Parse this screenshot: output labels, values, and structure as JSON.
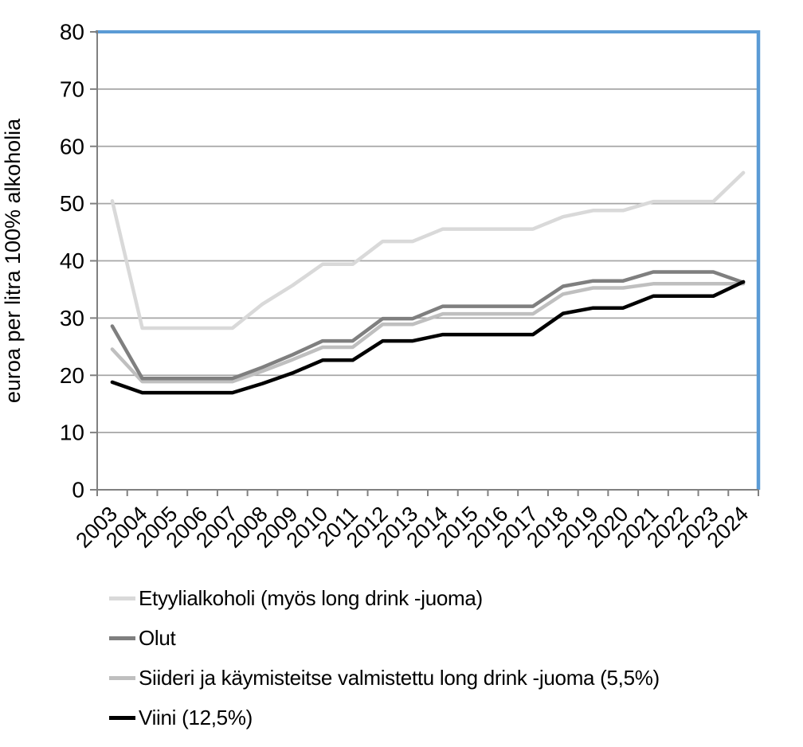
{
  "chart_data": {
    "type": "line",
    "title": "",
    "xlabel": "",
    "ylabel": "euroa per litra 100% alkoholia",
    "ylim": [
      0,
      80
    ],
    "ytick_step": 10,
    "grid": true,
    "legend_position": "bottom-left",
    "x": [
      "2003",
      "2004",
      "2005",
      "2006",
      "2007",
      "2008",
      "2009",
      "2010",
      "2011",
      "2012",
      "2013",
      "2014",
      "2015",
      "2016",
      "2017",
      "2018",
      "2019",
      "2020",
      "2021",
      "2022",
      "2023",
      "2024"
    ],
    "series": [
      {
        "name": "Etyylialkoholi (myös long drink -juoma)",
        "color": "#d9d9d9",
        "values": [
          50.46,
          28.25,
          28.25,
          28.25,
          28.25,
          32.45,
          35.7,
          39.4,
          39.4,
          43.4,
          43.4,
          45.55,
          45.55,
          45.55,
          45.55,
          47.7,
          48.8,
          48.8,
          50.35,
          50.35,
          50.35,
          55.39
        ]
      },
      {
        "name": "Olut",
        "color": "#7f7f7f",
        "values": [
          28.59,
          19.45,
          19.45,
          19.45,
          19.45,
          21.4,
          23.6,
          26.0,
          26.0,
          29.9,
          29.9,
          32.05,
          32.05,
          32.05,
          32.05,
          35.55,
          36.5,
          36.5,
          38.05,
          38.05,
          38.05,
          36.2
        ]
      },
      {
        "name": "Siideri ja käymisteitse valmistettu long drink -juoma (5,5%)",
        "color": "#bfbfbf",
        "values": [
          24.55,
          18.91,
          18.91,
          18.91,
          18.91,
          20.73,
          22.73,
          24.91,
          24.91,
          28.91,
          28.91,
          30.73,
          30.73,
          30.73,
          30.73,
          34.18,
          35.27,
          35.27,
          36.0,
          36.0,
          36.0,
          36.0
        ]
      },
      {
        "name": "Viini (12,5%)",
        "color": "#000000",
        "values": [
          18.8,
          16.96,
          16.96,
          16.96,
          16.96,
          18.56,
          20.4,
          22.64,
          22.64,
          26.0,
          26.0,
          27.12,
          27.12,
          27.12,
          27.12,
          30.8,
          31.76,
          31.76,
          33.84,
          33.84,
          33.84,
          36.32
        ]
      }
    ],
    "style": {
      "border_accent": "#5b9bd5",
      "gridline_color": "#a6a6a6",
      "axis_color": "#808080",
      "text_color": "#000000"
    }
  }
}
